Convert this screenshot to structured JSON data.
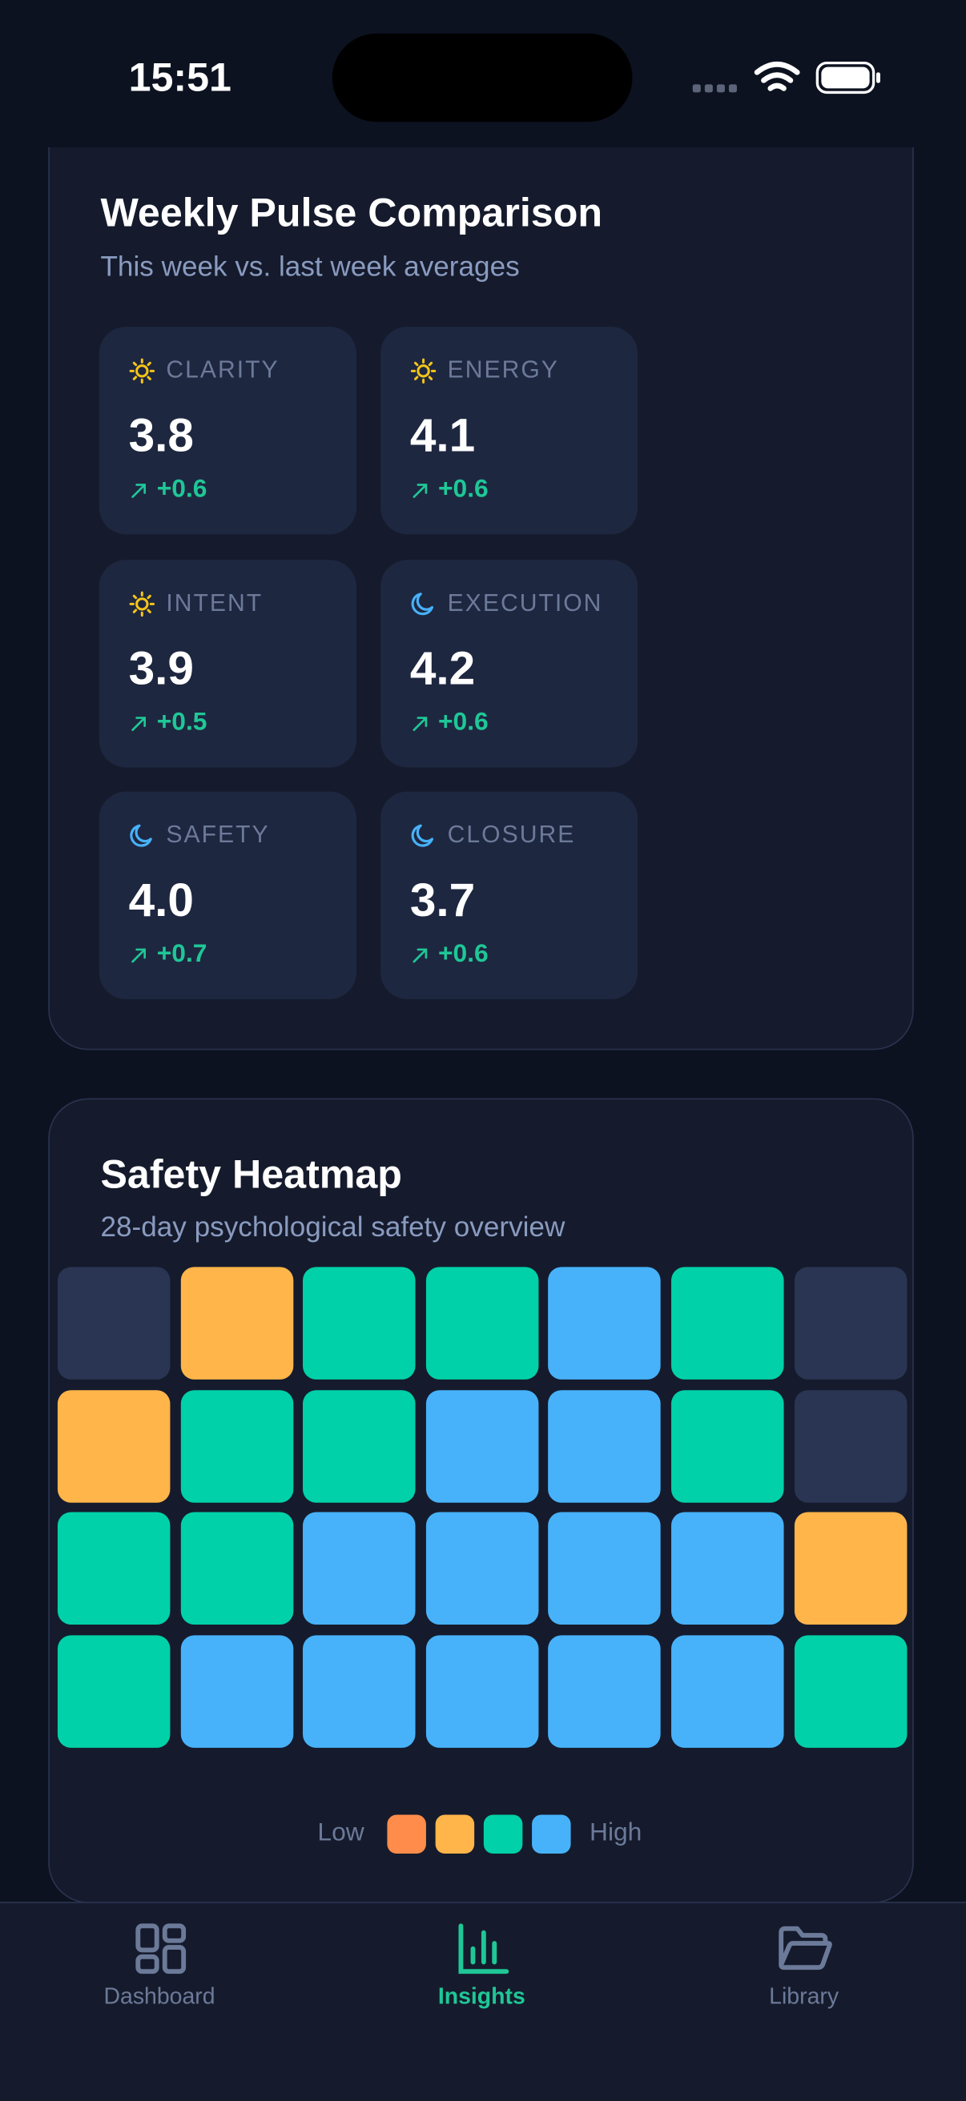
{
  "status_bar": {
    "time": "15:51"
  },
  "weekly_pulse": {
    "title": "Weekly Pulse Comparison",
    "subtitle": "This week vs. last week averages",
    "metrics": [
      {
        "label": "CLARITY",
        "value": "3.8",
        "delta": "+0.6",
        "icon": "sun"
      },
      {
        "label": "ENERGY",
        "value": "4.1",
        "delta": "+0.6",
        "icon": "sun"
      },
      {
        "label": "INTENT",
        "value": "3.9",
        "delta": "+0.5",
        "icon": "sun"
      },
      {
        "label": "EXECUTION",
        "value": "4.2",
        "delta": "+0.6",
        "icon": "moon"
      },
      {
        "label": "SAFETY",
        "value": "4.0",
        "delta": "+0.7",
        "icon": "moon"
      },
      {
        "label": "CLOSURE",
        "value": "3.7",
        "delta": "+0.6",
        "icon": "moon"
      }
    ]
  },
  "safety_heatmap": {
    "title": "Safety Heatmap",
    "subtitle": "28-day psychological safety overview",
    "rows": [
      [
        "#2a3553",
        "#ffb54a",
        "#00d1a8",
        "#00d1a8",
        "#47b2fa",
        "#00d1a8",
        "#2a3553"
      ],
      [
        "#ffb54a",
        "#00d1a8",
        "#00d1a8",
        "#47b2fa",
        "#47b2fa",
        "#00d1a8",
        "#2a3553"
      ],
      [
        "#00d1a8",
        "#00d1a8",
        "#47b2fa",
        "#47b2fa",
        "#47b2fa",
        "#47b2fa",
        "#ffb54a"
      ],
      [
        "#00d1a8",
        "#47b2fa",
        "#47b2fa",
        "#47b2fa",
        "#47b2fa",
        "#47b2fa",
        "#00d1a8"
      ]
    ],
    "legend": {
      "low": "Low",
      "high": "High",
      "colors": [
        "#ff8c4a",
        "#ffb54a",
        "#00d1a8",
        "#47b2fa"
      ]
    }
  },
  "tab_bar": {
    "tabs": [
      {
        "label": "Dashboard",
        "active": false
      },
      {
        "label": "Insights",
        "active": true
      },
      {
        "label": "Library",
        "active": false
      }
    ]
  }
}
